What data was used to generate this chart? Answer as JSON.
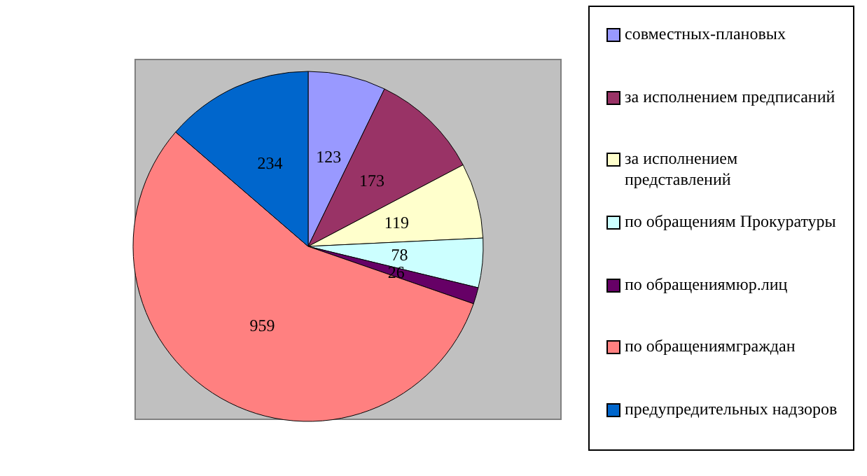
{
  "chart_data": {
    "type": "pie",
    "categories": [
      "совместных-плановых",
      "за исполнением предписаний",
      "за исполнением представлений",
      "по обращениям Прокуратуры",
      "по обращениямюр.лиц",
      "по обращениямграждан",
      "предупредительных надзоров"
    ],
    "values": [
      123,
      173,
      119,
      78,
      26,
      959,
      234
    ],
    "colors": [
      "#9999ff",
      "#993366",
      "#ffffcc",
      "#ccffff",
      "#660066",
      "#ff8080",
      "#0066cc"
    ],
    "data_labels": true,
    "legend": "right"
  }
}
